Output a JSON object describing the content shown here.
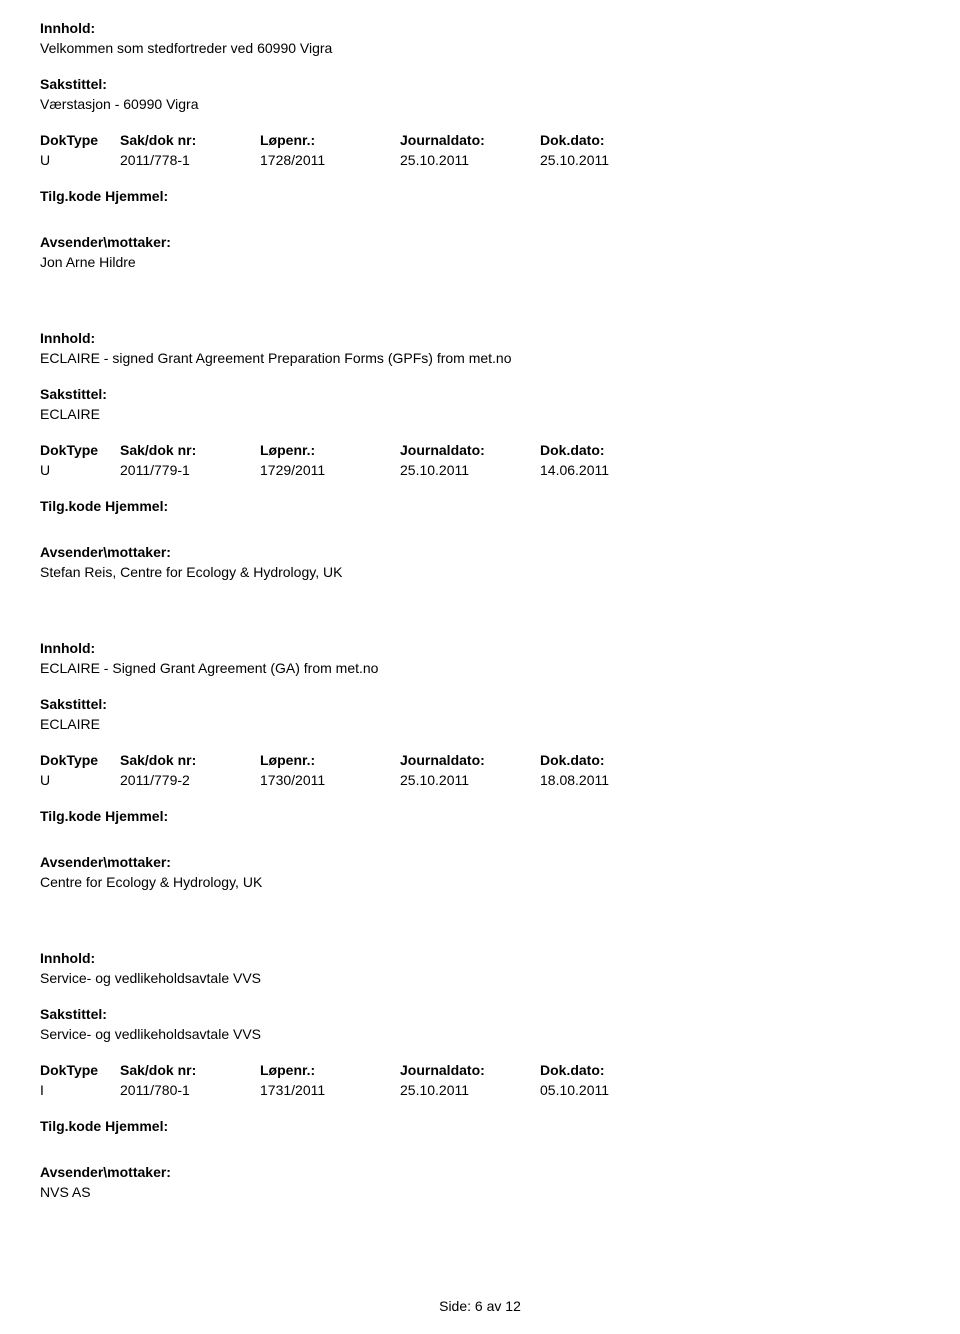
{
  "labels": {
    "innhold": "Innhold:",
    "sakstittel": "Sakstittel:",
    "doktype": "DokType",
    "sakdoknr": "Sak/dok nr:",
    "lopenr": "Løpenr.:",
    "journaldato": "Journaldato:",
    "dokdato": "Dok.dato:",
    "tilgkode": "Tilg.kode",
    "hjemmel": "Hjemmel:",
    "avsender": "Avsender\\mottaker:",
    "side": "Side:",
    "av": "av"
  },
  "records": [
    {
      "innhold": "Velkommen som stedfortreder ved 60990 Vigra",
      "sakstittel": "Værstasjon - 60990 Vigra",
      "doktype": "U",
      "sakdoknr": "2011/778-1",
      "lopenr": "1728/2011",
      "journaldato": "25.10.2011",
      "dokdato": "25.10.2011",
      "avsender": "Jon Arne Hildre"
    },
    {
      "innhold": "ECLAIRE - signed Grant Agreement Preparation Forms (GPFs) from met.no",
      "sakstittel": "ECLAIRE",
      "doktype": "U",
      "sakdoknr": "2011/779-1",
      "lopenr": "1729/2011",
      "journaldato": "25.10.2011",
      "dokdato": "14.06.2011",
      "avsender": "Stefan Reis, Centre for Ecology & Hydrology, UK"
    },
    {
      "innhold": "ECLAIRE - Signed  Grant Agreement (GA) from met.no",
      "sakstittel": "ECLAIRE",
      "doktype": "U",
      "sakdoknr": "2011/779-2",
      "lopenr": "1730/2011",
      "journaldato": "25.10.2011",
      "dokdato": "18.08.2011",
      "avsender": "Centre for Ecology & Hydrology, UK"
    },
    {
      "innhold": "Service- og vedlikeholdsavtale VVS",
      "sakstittel": "Service- og vedlikeholdsavtale VVS",
      "doktype": "I",
      "sakdoknr": "2011/780-1",
      "lopenr": "1731/2011",
      "journaldato": "25.10.2011",
      "dokdato": "05.10.2011",
      "avsender": "NVS AS"
    }
  ],
  "page": {
    "current": "6",
    "total": "12"
  }
}
